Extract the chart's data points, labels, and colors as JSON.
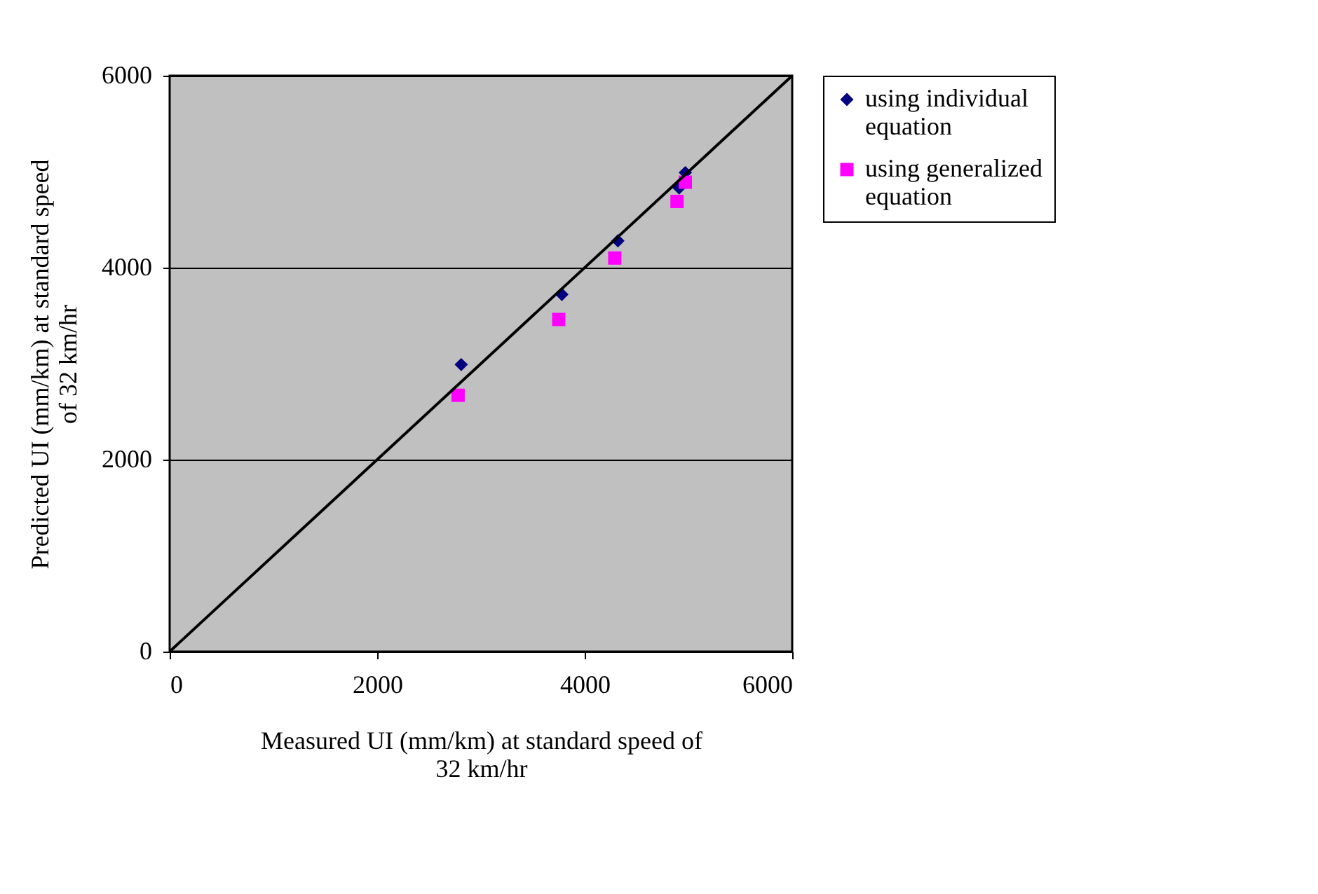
{
  "chart_data": {
    "type": "scatter",
    "xlabel": "Measured UI (mm/km) at standard speed of 32 km/hr",
    "ylabel": "Predicted UI (mm/km) at standard speed of 32 km/hr",
    "series": [
      {
        "name": "using individual equation",
        "color": "#000080",
        "marker": "diamond",
        "x": [
          2810,
          3780,
          4320,
          4910,
          4970
        ],
        "values": [
          2990,
          3720,
          4280,
          4830,
          4990
        ]
      },
      {
        "name": "using generalized equation",
        "color": "#ff00ff",
        "marker": "square",
        "x": [
          2780,
          3750,
          4290,
          4890,
          4970
        ],
        "values": [
          2670,
          3460,
          4100,
          4690,
          4890
        ]
      },
      {
        "type": "line",
        "color": "#000000",
        "x": [
          0,
          6000
        ],
        "values": [
          0,
          6000
        ]
      }
    ],
    "xlim": [
      0,
      6000
    ],
    "ylim": [
      0,
      6000
    ],
    "xticks": [
      0,
      2000,
      4000,
      6000
    ],
    "yticks": [
      0,
      2000,
      4000,
      6000
    ],
    "grid": "y",
    "legend": "right"
  }
}
